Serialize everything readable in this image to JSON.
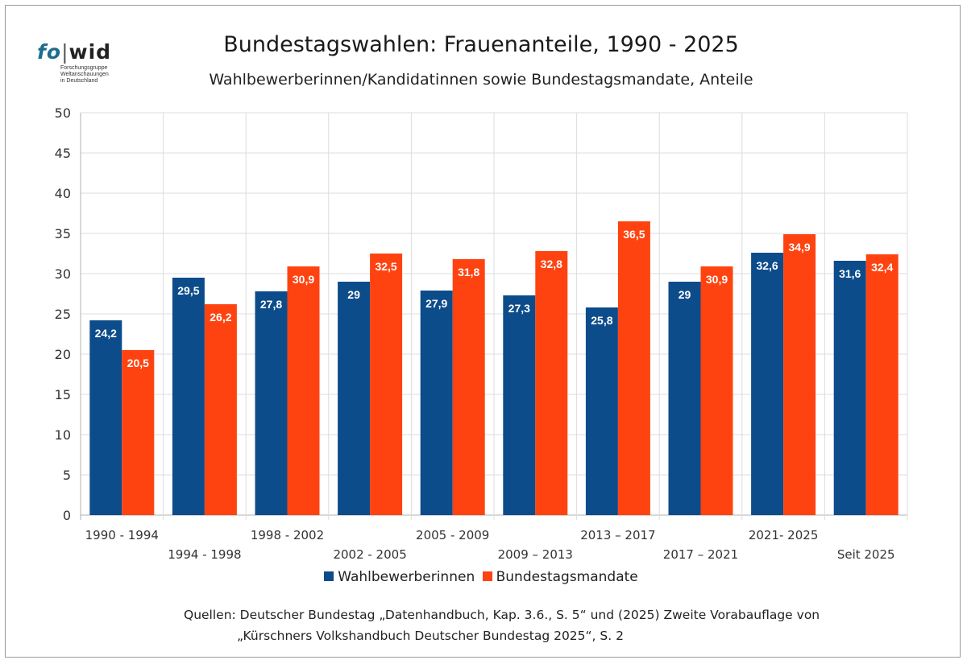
{
  "logo": {
    "mark_fo": "fo",
    "mark_sep": "|",
    "mark_wid": "wid",
    "subtitle": "Forschungsgruppe\nWeltanschauungen\nin Deutschland"
  },
  "colors": {
    "series1": "#0d4c8b",
    "series2": "#ff4310",
    "grid": "#dcdcdc",
    "axis": "#b0b0b0",
    "label_text": "#ffffff"
  },
  "chart_data": {
    "type": "bar",
    "title": "Bundestagswahlen: Frauenanteile, 1990 - 2025",
    "subtitle": "Wahlbewerberinnen/Kandidatinnen sowie Bundestagsmandate, Anteile",
    "categories": [
      "1990 - 1994",
      "1994 - 1998",
      "1998 - 2002",
      "2002 - 2005",
      "2005 - 2009",
      "2009 – 2013",
      "2013 – 2017",
      "2017 – 2021",
      "2021- 2025",
      "Seit 2025"
    ],
    "series": [
      {
        "name": "Wahlbewerberinnen",
        "values": [
          24.2,
          29.5,
          27.8,
          29,
          27.9,
          27.3,
          25.8,
          29,
          32.6,
          31.6
        ],
        "labels": [
          "24,2",
          "29,5",
          "27,8",
          "29",
          "27,9",
          "27,3",
          "25,8",
          "29",
          "32,6",
          "31,6"
        ]
      },
      {
        "name": "Bundestagsmandate",
        "values": [
          20.5,
          26.2,
          30.9,
          32.5,
          31.8,
          32.8,
          36.5,
          30.9,
          34.9,
          32.4
        ],
        "labels": [
          "20,5",
          "26,2",
          "30,9",
          "32,5",
          "31,8",
          "32,8",
          "36,5",
          "30,9",
          "34,9",
          "32,4"
        ]
      }
    ],
    "ylim": [
      0,
      50
    ],
    "yticks": [
      "0",
      "5",
      "10",
      "15",
      "20",
      "25",
      "30",
      "35",
      "40",
      "45",
      "50"
    ],
    "grid": true,
    "legend": "bottom"
  },
  "source": {
    "line1": "Quellen: Deutscher Bundestag „Datenhandbuch, Kap. 3.6., S. 5“ und (2025) Zweite Vorabauflage von",
    "line2": "„Kürschners Volkshandbuch Deutscher Bundestag 2025“, S. 2"
  }
}
